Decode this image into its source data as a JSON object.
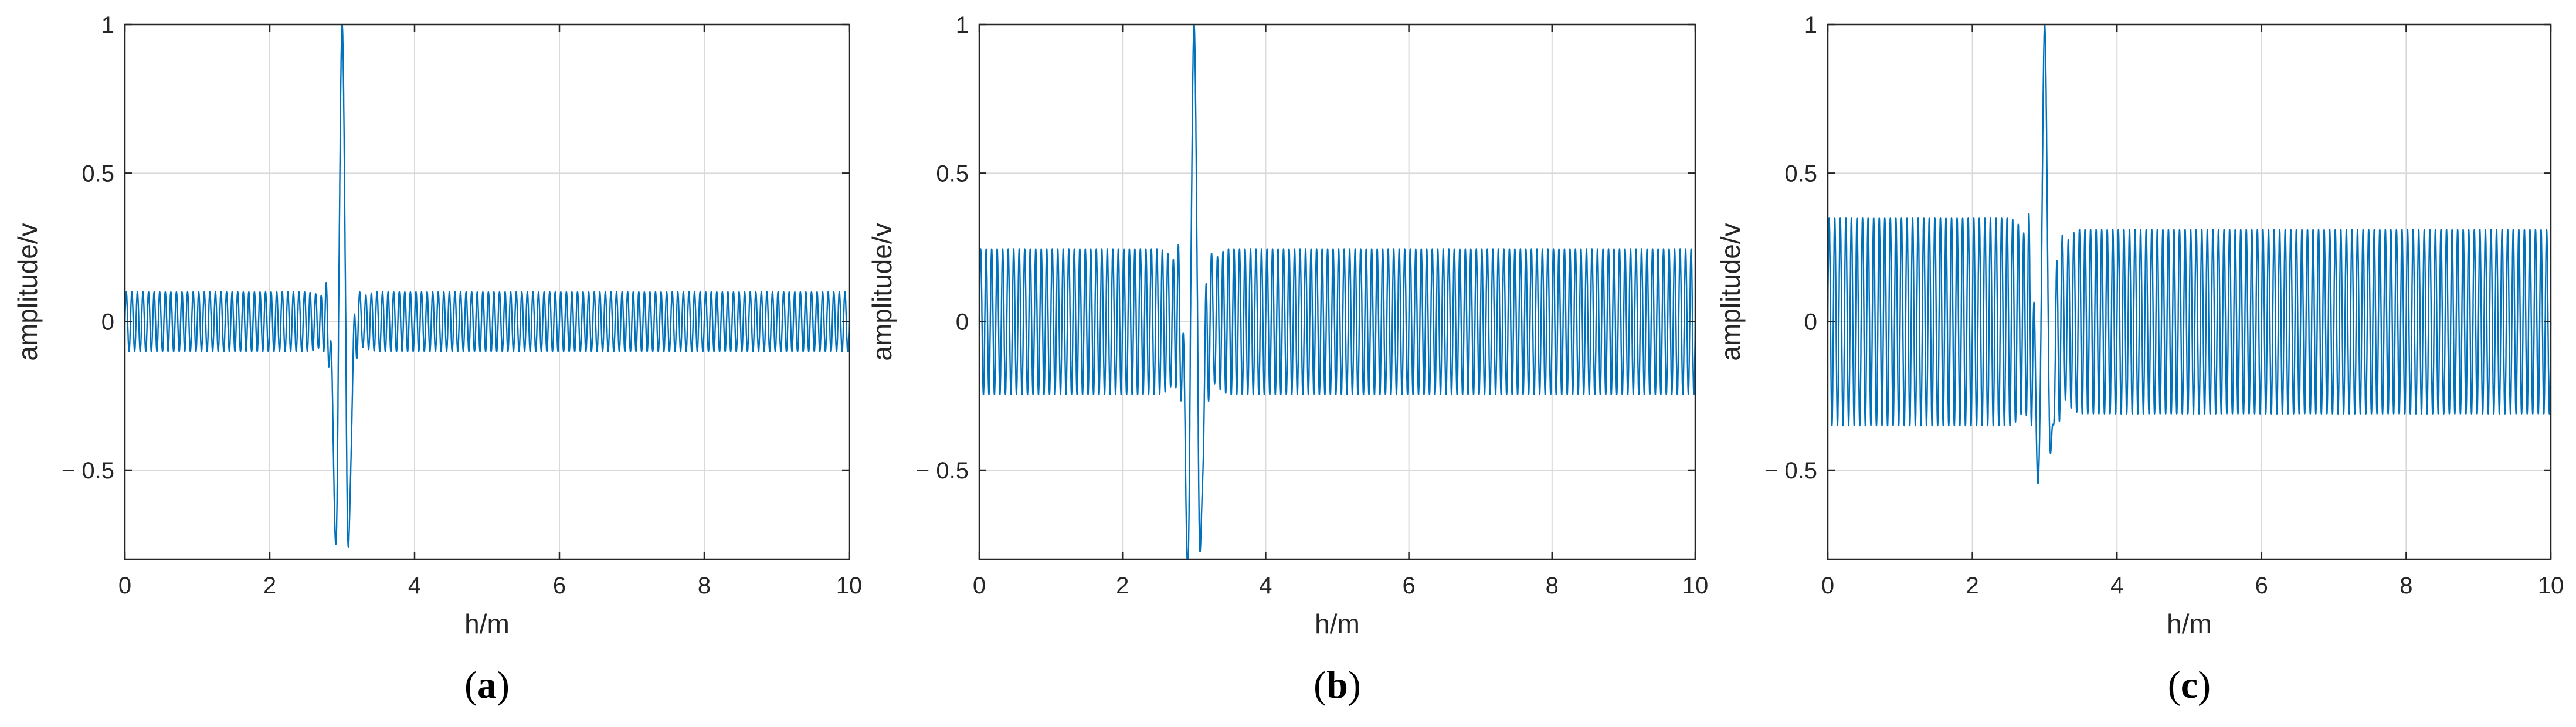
{
  "colors": {
    "line": "#0072BD",
    "grid": "#d9d9d9",
    "axis": "#262626",
    "text": "#262626"
  },
  "chart_data": [
    {
      "type": "line",
      "panel_label": "a",
      "xlabel": "h/m",
      "ylabel": "amplitude/v",
      "xlim": [
        0,
        10
      ],
      "ylim": [
        -0.8,
        1
      ],
      "xticks": [
        0,
        2,
        4,
        6,
        8,
        10
      ],
      "yticks": [
        -0.5,
        0,
        0.5,
        1
      ],
      "xtick_labels": [
        "0",
        "2",
        "4",
        "6",
        "8",
        "10"
      ],
      "ytick_labels": [
        "− 0.5",
        "0",
        "0.5",
        "1"
      ],
      "grid": true,
      "series": [
        {
          "background_oscillation": {
            "amplitude_before": 0.1,
            "amplitude_after": 0.1,
            "cycles_per_m": 13
          },
          "pulse": {
            "center": 3.0,
            "peak": 1.0,
            "min_left": -0.74,
            "min_right": -0.77,
            "side_peaks": [
              0.18,
              0.14
            ]
          }
        }
      ]
    },
    {
      "type": "line",
      "panel_label": "b",
      "xlabel": "h/m",
      "ylabel": "amplitude/v",
      "xlim": [
        0,
        10
      ],
      "ylim": [
        -0.8,
        1
      ],
      "xticks": [
        0,
        2,
        4,
        6,
        8,
        10
      ],
      "yticks": [
        -0.5,
        0,
        0.5,
        1
      ],
      "xtick_labels": [
        "0",
        "2",
        "4",
        "6",
        "8",
        "10"
      ],
      "ytick_labels": [
        "− 0.5",
        "0",
        "0.5",
        "1"
      ],
      "grid": true,
      "series": [
        {
          "background_oscillation": {
            "amplitude_before": 0.245,
            "amplitude_after": 0.245,
            "cycles_per_m": 13
          },
          "pulse": {
            "center": 3.0,
            "peak": 1.0,
            "min_left": -0.8,
            "min_right": -0.8,
            "side_peaks": [
              0.3,
              0.29
            ]
          }
        }
      ]
    },
    {
      "type": "line",
      "panel_label": "c",
      "xlabel": "h/m",
      "ylabel": "amplitude/v",
      "xlim": [
        0,
        10
      ],
      "ylim": [
        -0.8,
        1
      ],
      "xticks": [
        0,
        2,
        4,
        6,
        8,
        10
      ],
      "yticks": [
        -0.5,
        0,
        0.5,
        1
      ],
      "xtick_labels": [
        "0",
        "2",
        "4",
        "6",
        "8",
        "10"
      ],
      "ytick_labels": [
        "− 0.5",
        "0",
        "0.5",
        "1"
      ],
      "grid": true,
      "series": [
        {
          "background_oscillation": {
            "amplitude_before": 0.35,
            "amplitude_after": 0.31,
            "cycles_per_m": 13
          },
          "pulse": {
            "center": 3.0,
            "peak": 1.0,
            "min_left": -0.5,
            "min_right": -0.47,
            "side_peaks": [
              0.41,
              0.37
            ]
          }
        }
      ]
    }
  ]
}
